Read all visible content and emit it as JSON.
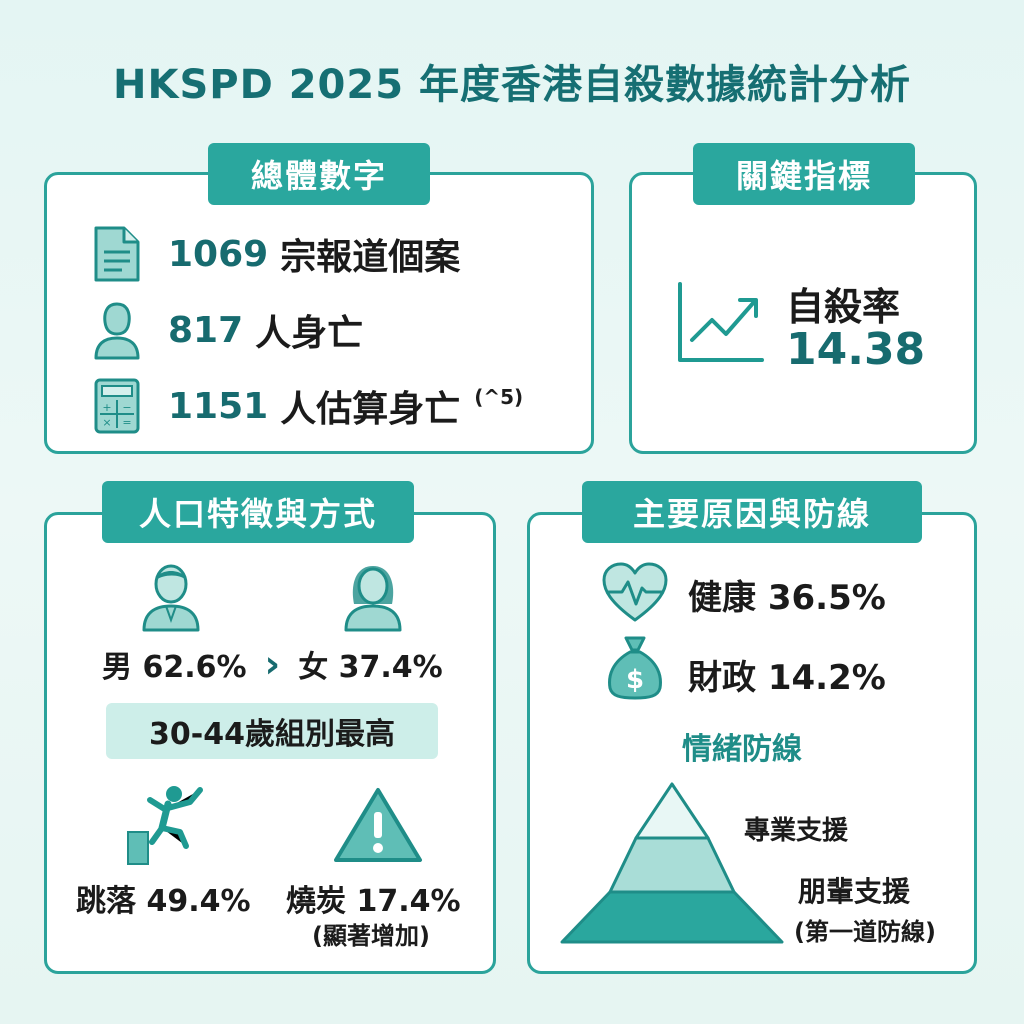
{
  "title": "HKSPD 2025 年度香港自殺數據統計分析",
  "overall": {
    "label": "總體數字",
    "items": [
      {
        "icon": "document-icon",
        "number": "1069",
        "text": "宗報道個案",
        "note": ""
      },
      {
        "icon": "person-icon",
        "number": "817",
        "text": "人身亡",
        "note": ""
      },
      {
        "icon": "calculator-icon",
        "number": "1151",
        "text": "人估算身亡",
        "note": "(^5)"
      }
    ]
  },
  "key": {
    "label": "關鍵指標",
    "icon": "trend-up-icon",
    "name": "自殺率",
    "value": "14.38"
  },
  "demo": {
    "label": "人口特徵與方式",
    "male_icon": "male-icon",
    "female_icon": "female-icon",
    "male": "男 62.6%",
    "compare": "›",
    "female": "女 37.4%",
    "age": "30-44歲組別最高",
    "jump_icon": "jumping-person-icon",
    "jump": "跳落 49.4%",
    "charcoal_icon": "warning-icon",
    "charcoal": "燒炭 17.4%",
    "charcoal_note": "(顯著增加)"
  },
  "causes": {
    "label": "主要原因與防線",
    "health_icon": "heart-pulse-icon",
    "health": "健康 36.5%",
    "finance_icon": "money-bag-icon",
    "finance": "財政 14.2%",
    "defense_title": "情緒防線",
    "pyramid": {
      "top": "專業支援",
      "bottom": "朋輩支援",
      "bottom_note": "(第一道防線)"
    }
  },
  "colors": {
    "accent": "#2aa79e",
    "title": "#166f73",
    "background": "#e6f5f2"
  }
}
